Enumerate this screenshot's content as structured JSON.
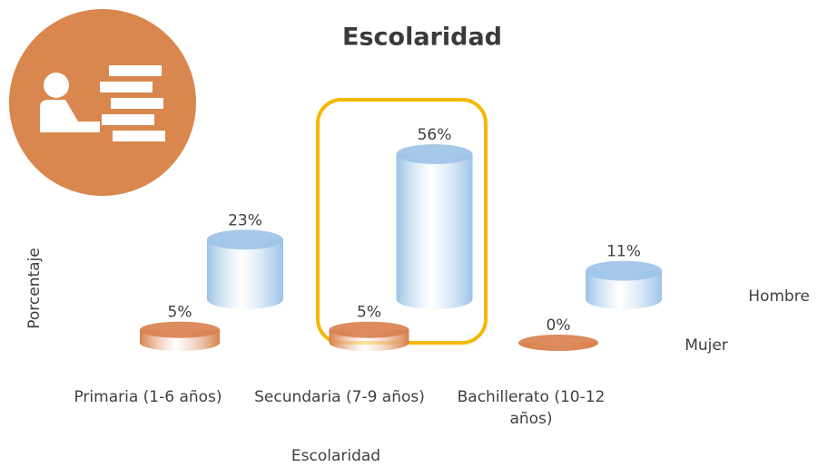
{
  "chart_data": {
    "type": "bar",
    "title": "Escolaridad",
    "xlabel": "Escolaridad",
    "ylabel": "Porcentaje",
    "categories": [
      "Primaria (1-6 años)",
      "Secundaria (7-9 años)",
      "Bachillerato (10-12 años)"
    ],
    "series": [
      {
        "name": "Hombre",
        "color": "#9cc3e8",
        "values": [
          23,
          56,
          11
        ],
        "value_labels": [
          "23%",
          "56%",
          "11%"
        ]
      },
      {
        "name": "Mujer",
        "color": "#d8804c",
        "values": [
          5,
          5,
          0
        ],
        "value_labels": [
          "5%",
          "5%",
          "0%"
        ]
      }
    ]
  }
}
